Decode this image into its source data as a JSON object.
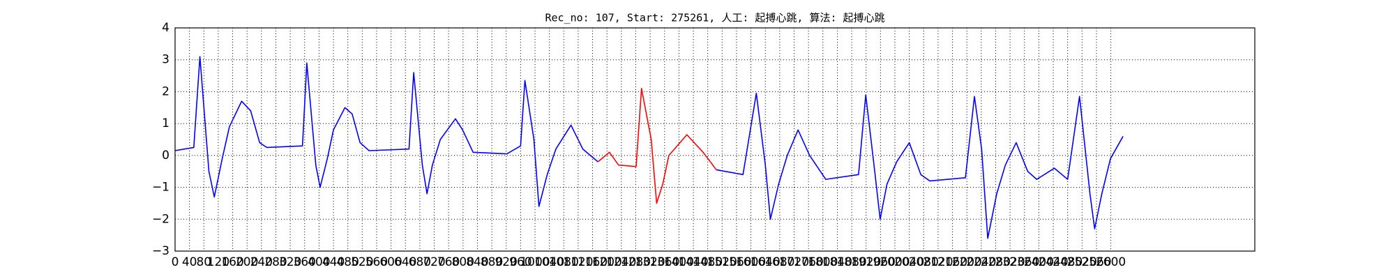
{
  "chart_data": {
    "type": "line",
    "title": "Rec_no: 107, Start: 275261, 人工: 起搏心跳, 算法: 起搏心跳",
    "x": [
      0,
      52,
      69,
      94,
      109,
      131,
      151,
      185,
      210,
      235,
      255,
      354,
      366,
      391,
      403,
      423,
      440,
      472,
      492,
      514,
      539,
      650,
      663,
      687,
      700,
      715,
      737,
      779,
      799,
      828,
      922,
      960,
      972,
      997,
      1011,
      1034,
      1058,
      1100,
      1133,
      1175,
      1207,
      1232,
      1281,
      1296,
      1323,
      1338,
      1355,
      1372,
      1422,
      1467,
      1504,
      1578,
      1615,
      1640,
      1654,
      1677,
      1701,
      1731,
      1763,
      1808,
      1899,
      1919,
      1944,
      1959,
      1978,
      2005,
      2040,
      2072,
      2097,
      2196,
      2221,
      2241,
      2258,
      2283,
      2307,
      2337,
      2369,
      2394,
      2443,
      2480,
      2513,
      2542,
      2555,
      2575,
      2599,
      2634
    ],
    "series": [
      {
        "color": "#0000ff",
        "values": [
          0.15,
          0.25,
          3.1,
          -0.5,
          -1.3,
          -0.1,
          0.9,
          1.7,
          1.4,
          0.4,
          0.25,
          0.3,
          2.9,
          -0.3,
          -1.0,
          -0.1,
          0.8,
          1.5,
          1.3,
          0.4,
          0.15,
          0.2,
          2.6,
          -0.3,
          -1.2,
          -0.3,
          0.5,
          1.15,
          0.8,
          0.1,
          0.05,
          0.3,
          2.35,
          0.5,
          -1.6,
          -0.6,
          0.2,
          0.95,
          0.2,
          -0.2,
          null,
          null,
          null,
          null,
          null,
          null,
          null,
          null,
          null,
          null,
          -0.45,
          -0.6,
          1.95,
          -0.3,
          -2.0,
          -0.9,
          0.0,
          0.8,
          0.0,
          -0.75,
          -0.6,
          1.9,
          -0.5,
          -2.0,
          -0.9,
          -0.2,
          0.4,
          -0.6,
          -0.8,
          -0.7,
          1.85,
          0.2,
          -2.6,
          -1.2,
          -0.3,
          0.4,
          -0.5,
          -0.75,
          -0.4,
          -0.75,
          1.85,
          -1.2,
          -2.3,
          -1.2,
          -0.1,
          0.6
        ]
      },
      {
        "color": "#ff0000",
        "values": [
          null,
          null,
          null,
          null,
          null,
          null,
          null,
          null,
          null,
          null,
          null,
          null,
          null,
          null,
          null,
          null,
          null,
          null,
          null,
          null,
          null,
          null,
          null,
          null,
          null,
          null,
          null,
          null,
          null,
          null,
          null,
          null,
          null,
          null,
          null,
          null,
          null,
          null,
          null,
          -0.2,
          0.1,
          -0.3,
          -0.35,
          2.1,
          0.5,
          -1.5,
          -0.9,
          0.0,
          0.65,
          0.1,
          -0.45,
          null,
          null,
          null,
          null,
          null,
          null,
          null,
          null,
          null,
          null,
          null,
          null,
          null,
          null,
          null,
          null,
          null,
          null,
          null,
          null,
          null,
          null,
          null,
          null,
          null,
          null,
          null,
          null,
          null,
          null,
          null,
          null,
          null,
          null,
          null
        ]
      }
    ],
    "xlim": [
      0,
      3000
    ],
    "xticks": [
      0,
      40,
      80,
      120,
      160,
      200,
      240,
      280,
      320,
      360,
      400,
      440,
      480,
      520,
      560,
      600,
      640,
      680,
      720,
      760,
      800,
      840,
      880,
      920,
      960,
      1000,
      1040,
      1080,
      1120,
      1160,
      1200,
      1240,
      1280,
      1320,
      1360,
      1400,
      1440,
      1480,
      1520,
      1560,
      1600,
      1640,
      1680,
      1720,
      1760,
      1800,
      1840,
      1880,
      1920,
      1960,
      2000,
      2040,
      2080,
      2120,
      2160,
      2200,
      2240,
      2280,
      2320,
      2360,
      2400,
      2440,
      2480,
      2520,
      2560,
      2600
    ],
    "ylim": [
      -3,
      4
    ],
    "yticks": [
      {
        "value": -3,
        "label": "−3"
      },
      {
        "value": -2,
        "label": "−2"
      },
      {
        "value": -1,
        "label": "−1"
      },
      0,
      1,
      2,
      3,
      4
    ],
    "grid": true
  }
}
